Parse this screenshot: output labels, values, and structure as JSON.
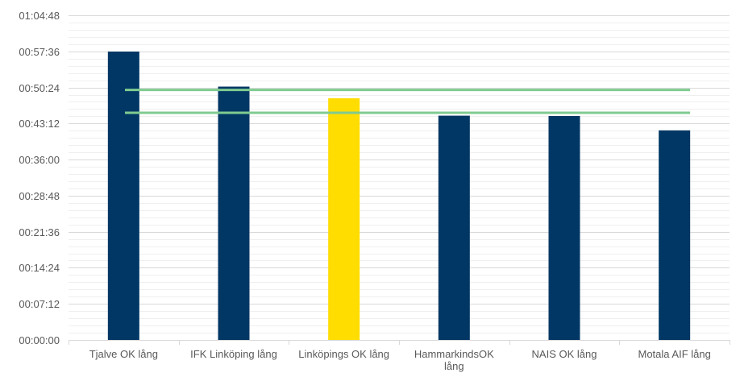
{
  "chart_data": {
    "type": "bar",
    "title": "",
    "xlabel": "",
    "ylabel": "",
    "categories": [
      "Tjalve OK lång",
      "IFK Linköping lång",
      "Linköpings OK lång",
      "HammarkindsOK lång",
      "NAIS OK lång",
      "Motala AIF lång"
    ],
    "category_lines": [
      [
        "Tjalve OK lång"
      ],
      [
        "IFK Linköping lång"
      ],
      [
        "Linköpings OK lång"
      ],
      [
        "HammarkindsOK",
        "lång"
      ],
      [
        "NAIS OK lång"
      ],
      [
        "Motala AIF lång"
      ]
    ],
    "values_seconds": [
      3454,
      3034,
      2894,
      2686,
      2682,
      2510
    ],
    "bar_colors": [
      "#003764",
      "#003764",
      "#FFDD00",
      "#003764",
      "#003764",
      "#003764"
    ],
    "ylim_seconds": [
      0,
      3888
    ],
    "ytick_step_seconds": 432,
    "ytick_labels": [
      "00:00:00",
      "00:07:12",
      "00:14:24",
      "00:21:36",
      "00:28:48",
      "00:36:00",
      "00:43:12",
      "00:50:24",
      "00:57:36",
      "01:04:48"
    ],
    "reference_lines_seconds": [
      2994,
      2721
    ],
    "reference_line_color": "#7FCB90",
    "grid": true,
    "minor_grid": true,
    "legend": "none"
  }
}
